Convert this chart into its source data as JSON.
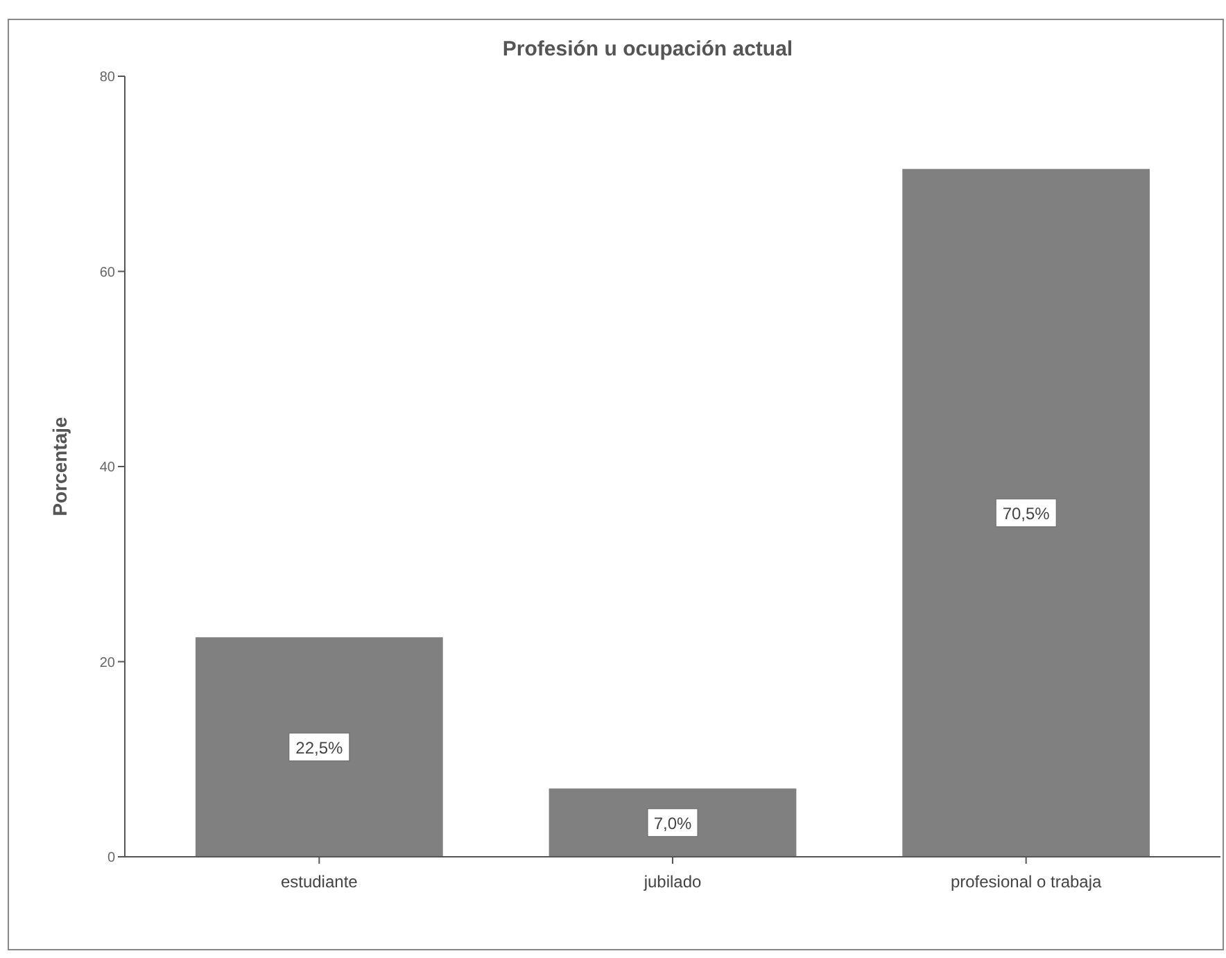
{
  "chart_data": {
    "type": "bar",
    "title": "Profesión u ocupación actual",
    "ylabel": "Porcentaje",
    "categories": [
      "estudiante",
      "jubilado",
      "profesional o trabaja"
    ],
    "values": [
      22.5,
      7.0,
      70.5
    ],
    "value_labels": [
      "22,5%",
      "7,0%",
      "70,5%"
    ],
    "color": "#808080",
    "ylim": [
      0,
      80
    ],
    "yticks": [
      0,
      20,
      40,
      60,
      80
    ]
  }
}
